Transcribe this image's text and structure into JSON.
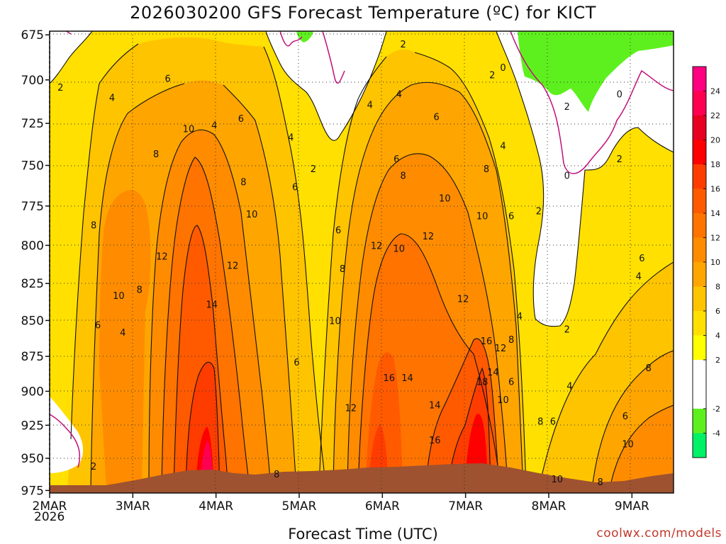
{
  "header": {
    "title": "2026030200 GFS Forecast Temperature (ºC) for KICT"
  },
  "footer": {
    "xlabel": "Forecast Time (UTC)",
    "credit": "coolwx.com/models",
    "year": "2026"
  },
  "chart_data": {
    "type": "heatmap",
    "title": "2026030200 GFS Forecast Temperature (ºC) for KICT",
    "xlabel": "Forecast Time (UTC)",
    "ylabel": "",
    "x_ticks": [
      "2MAR",
      "3MAR",
      "4MAR",
      "5MAR",
      "6MAR",
      "7MAR",
      "8MAR",
      "9MAR"
    ],
    "x_tick_days": [
      0,
      1,
      2,
      3,
      4,
      5,
      6,
      7
    ],
    "x_range_days": [
      0,
      7.5
    ],
    "y_ticks": [
      675,
      700,
      725,
      750,
      775,
      800,
      825,
      850,
      875,
      900,
      925,
      950,
      975
    ],
    "y_range_hpa": [
      673,
      977
    ],
    "colorbar": {
      "levels": [
        -6,
        -4,
        -2,
        2,
        4,
        6,
        8,
        10,
        12,
        14,
        16,
        18,
        20,
        22,
        24,
        26
      ],
      "labels": [
        "-4",
        "-2",
        "2",
        "4",
        "6",
        "8",
        "10",
        "12",
        "14",
        "16",
        "18",
        "20",
        "22",
        "24"
      ],
      "colors": [
        "#00f066",
        "#5ef01e",
        "#ffffff",
        "#ffff00",
        "#ffe000",
        "#ffc400",
        "#ffa500",
        "#ff8c00",
        "#ff7300",
        "#ff5a00",
        "#ff3c00",
        "#ff0000",
        "#e80020",
        "#ff0050",
        "#ff0080"
      ]
    },
    "freezing_contour_label": "0",
    "surface_color": "#9e5230",
    "contour_labels": [
      {
        "v": "2",
        "d": 0.13,
        "p": 704
      },
      {
        "v": "4",
        "d": 0.75,
        "p": 710
      },
      {
        "v": "6",
        "d": 1.42,
        "p": 699
      },
      {
        "v": "8",
        "d": 1.28,
        "p": 743
      },
      {
        "v": "10",
        "d": 1.67,
        "p": 728
      },
      {
        "v": "8",
        "d": 0.53,
        "p": 787
      },
      {
        "v": "12",
        "d": 1.35,
        "p": 807
      },
      {
        "v": "10",
        "d": 0.83,
        "p": 833
      },
      {
        "v": "8",
        "d": 1.08,
        "p": 829
      },
      {
        "v": "6",
        "d": 0.58,
        "p": 853
      },
      {
        "v": "4",
        "d": 0.88,
        "p": 858
      },
      {
        "v": "2",
        "d": 0.53,
        "p": 956
      },
      {
        "v": "4",
        "d": 1.98,
        "p": 726
      },
      {
        "v": "6",
        "d": 2.3,
        "p": 722
      },
      {
        "v": "8",
        "d": 2.33,
        "p": 760
      },
      {
        "v": "10",
        "d": 2.43,
        "p": 780
      },
      {
        "v": "12",
        "d": 2.2,
        "p": 813
      },
      {
        "v": "14",
        "d": 1.95,
        "p": 839
      },
      {
        "v": "4",
        "d": 2.9,
        "p": 733
      },
      {
        "v": "6",
        "d": 2.95,
        "p": 763
      },
      {
        "v": "2",
        "d": 3.17,
        "p": 752
      },
      {
        "v": "6",
        "d": 3.47,
        "p": 790
      },
      {
        "v": "8",
        "d": 3.52,
        "p": 815
      },
      {
        "v": "10",
        "d": 3.43,
        "p": 850
      },
      {
        "v": "6",
        "d": 2.97,
        "p": 879
      },
      {
        "v": "8",
        "d": 2.73,
        "p": 962
      },
      {
        "v": "2",
        "d": 4.25,
        "p": 680
      },
      {
        "v": "4",
        "d": 3.85,
        "p": 714
      },
      {
        "v": "6",
        "d": 4.17,
        "p": 746
      },
      {
        "v": "8",
        "d": 4.25,
        "p": 756
      },
      {
        "v": "12",
        "d": 3.93,
        "p": 800
      },
      {
        "v": "10",
        "d": 4.2,
        "p": 802
      },
      {
        "v": "12",
        "d": 4.55,
        "p": 794
      },
      {
        "v": "6",
        "d": 4.65,
        "p": 721
      },
      {
        "v": "4",
        "d": 4.2,
        "p": 708
      },
      {
        "v": "10",
        "d": 4.75,
        "p": 770
      },
      {
        "v": "12",
        "d": 4.97,
        "p": 835
      },
      {
        "v": "16",
        "d": 4.08,
        "p": 890
      },
      {
        "v": "14",
        "d": 4.3,
        "p": 890
      },
      {
        "v": "12",
        "d": 3.62,
        "p": 912
      },
      {
        "v": "14",
        "d": 4.63,
        "p": 910
      },
      {
        "v": "16",
        "d": 4.63,
        "p": 936
      },
      {
        "v": "2",
        "d": 5.32,
        "p": 697
      },
      {
        "v": "0",
        "d": 5.45,
        "p": 693
      },
      {
        "v": "4",
        "d": 5.45,
        "p": 738
      },
      {
        "v": "8",
        "d": 5.25,
        "p": 752
      },
      {
        "v": "10",
        "d": 5.2,
        "p": 781
      },
      {
        "v": "6",
        "d": 5.55,
        "p": 781
      },
      {
        "v": "2",
        "d": 5.88,
        "p": 778
      },
      {
        "v": "16",
        "d": 5.25,
        "p": 864
      },
      {
        "v": "12",
        "d": 5.42,
        "p": 869
      },
      {
        "v": "14",
        "d": 5.33,
        "p": 886
      },
      {
        "v": "18",
        "d": 5.2,
        "p": 893
      },
      {
        "v": "10",
        "d": 5.45,
        "p": 906
      },
      {
        "v": "6",
        "d": 5.55,
        "p": 893
      },
      {
        "v": "8",
        "d": 5.55,
        "p": 863
      },
      {
        "v": "4",
        "d": 5.65,
        "p": 847
      },
      {
        "v": "2",
        "d": 6.22,
        "p": 715
      },
      {
        "v": "0",
        "d": 6.85,
        "p": 708
      },
      {
        "v": "0",
        "d": 6.22,
        "p": 756
      },
      {
        "v": "2",
        "d": 6.85,
        "p": 746
      },
      {
        "v": "2",
        "d": 6.22,
        "p": 856
      },
      {
        "v": "4",
        "d": 6.25,
        "p": 896
      },
      {
        "v": "4",
        "d": 7.08,
        "p": 820
      },
      {
        "v": "6",
        "d": 7.12,
        "p": 808
      },
      {
        "v": "8",
        "d": 7.2,
        "p": 883
      },
      {
        "v": "6",
        "d": 6.05,
        "p": 922
      },
      {
        "v": "8",
        "d": 5.9,
        "p": 922
      },
      {
        "v": "6",
        "d": 6.92,
        "p": 918
      },
      {
        "v": "10",
        "d": 6.95,
        "p": 939
      },
      {
        "v": "10",
        "d": 6.1,
        "p": 966
      },
      {
        "v": "8",
        "d": 6.62,
        "p": 968
      }
    ]
  }
}
